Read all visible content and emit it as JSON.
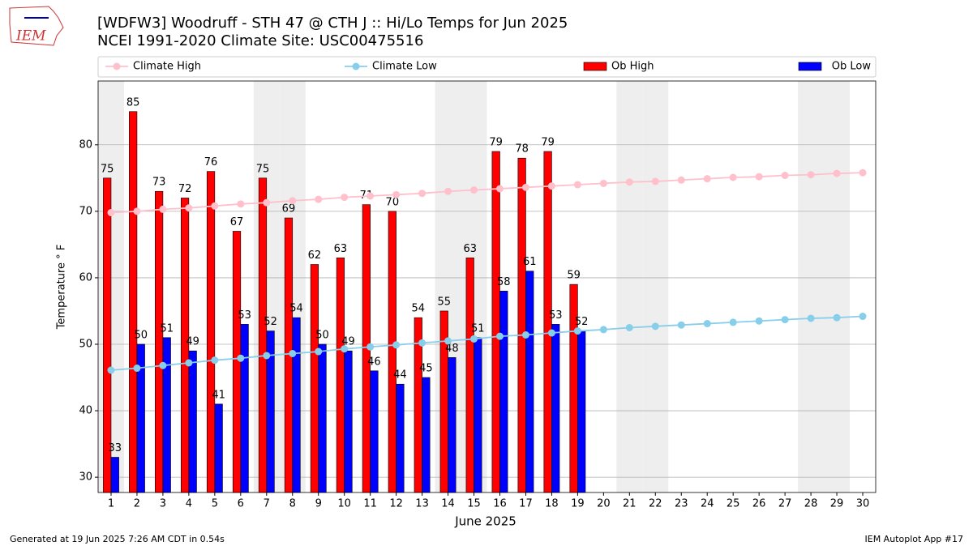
{
  "logo": "IEM",
  "footer": {
    "left": "Generated at 19 Jun 2025 7:26 AM CDT in 0.54s",
    "right": "IEM Autoplot App #17"
  },
  "chart_data": {
    "type": "bar",
    "title": "[WDFW3] Woodruff - STH 47 @ CTH J :: Hi/Lo Temps for Jun 2025",
    "subtitle": "NCEI 1991-2020 Climate Site: USC00475516",
    "xlabel": "June 2025",
    "ylabel": "Temperature ° F",
    "x": [
      1,
      2,
      3,
      4,
      5,
      6,
      7,
      8,
      9,
      10,
      11,
      12,
      13,
      14,
      15,
      16,
      17,
      18,
      19,
      20,
      21,
      22,
      23,
      24,
      25,
      26,
      27,
      28,
      29,
      30
    ],
    "xlim": [
      0.5,
      30.5
    ],
    "xticks": [
      1,
      2,
      3,
      4,
      5,
      6,
      7,
      8,
      9,
      10,
      11,
      12,
      13,
      14,
      15,
      16,
      17,
      18,
      19,
      20,
      21,
      22,
      23,
      24,
      25,
      26,
      27,
      28,
      29,
      30
    ],
    "ylim": [
      27.7,
      89.6
    ],
    "yticks": [
      30,
      40,
      50,
      60,
      70,
      80
    ],
    "grid": true,
    "weekend_days": [
      1,
      7,
      8,
      14,
      15,
      21,
      22,
      28,
      29
    ],
    "weekend_color": "#eeeeee",
    "series": [
      {
        "name": "Climate High",
        "type": "line",
        "color": "pink",
        "values": [
          69.8,
          70.0,
          70.3,
          70.5,
          70.8,
          71.1,
          71.3,
          71.6,
          71.8,
          72.1,
          72.3,
          72.5,
          72.7,
          73.0,
          73.2,
          73.4,
          73.6,
          73.8,
          74.0,
          74.2,
          74.4,
          74.5,
          74.7,
          74.9,
          75.1,
          75.2,
          75.4,
          75.5,
          75.7,
          75.8
        ]
      },
      {
        "name": "Climate Low",
        "type": "line",
        "color": "skyblue",
        "values": [
          46.1,
          46.4,
          46.8,
          47.2,
          47.6,
          47.9,
          48.3,
          48.6,
          48.9,
          49.3,
          49.6,
          49.9,
          50.2,
          50.5,
          50.8,
          51.2,
          51.4,
          51.7,
          52.0,
          52.2,
          52.5,
          52.7,
          52.9,
          53.1,
          53.3,
          53.5,
          53.7,
          53.9,
          54.0,
          54.2
        ]
      },
      {
        "name": "Ob High",
        "type": "bar",
        "color": "red",
        "values": [
          75,
          85,
          73,
          72,
          76,
          67,
          75,
          69,
          62,
          63,
          71,
          70,
          54,
          55,
          63,
          79,
          78,
          79,
          59,
          null,
          null,
          null,
          null,
          null,
          null,
          null,
          null,
          null,
          null,
          null
        ]
      },
      {
        "name": "Ob Low",
        "type": "bar",
        "color": "blue",
        "values": [
          33,
          50,
          51,
          49,
          41,
          53,
          52,
          54,
          50,
          49,
          46,
          44,
          45,
          48,
          51,
          58,
          61,
          53,
          52,
          null,
          null,
          null,
          null,
          null,
          null,
          null,
          null,
          null,
          null,
          null
        ]
      }
    ]
  }
}
